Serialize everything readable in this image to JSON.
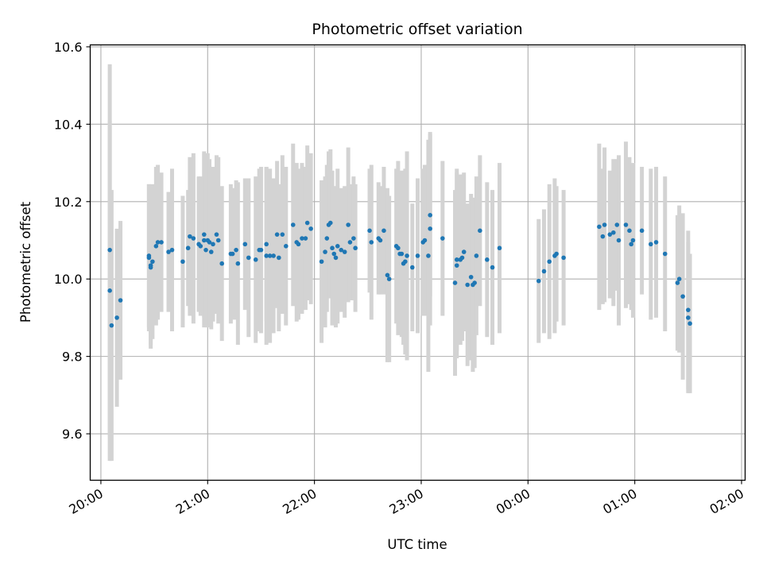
{
  "chart_data": {
    "type": "scatter",
    "title": "Photometric offset variation",
    "xlabel": "UTC time",
    "ylabel": "Photometric offset",
    "x_unit": "UTC time (HH:MM)",
    "xlim": [
      "19:54",
      "02:02"
    ],
    "ylim": [
      9.48,
      10.605
    ],
    "y_ticks": [
      9.6,
      9.8,
      10.0,
      10.2,
      10.4,
      10.6
    ],
    "x_ticks": [
      {
        "time": "20:00",
        "label": "20:00"
      },
      {
        "time": "21:00",
        "label": "21:00"
      },
      {
        "time": "22:00",
        "label": "22:00"
      },
      {
        "time": "23:00",
        "label": "23:00"
      },
      {
        "time": "00:00",
        "label": "00:00"
      },
      {
        "time": "01:00",
        "label": "01:00"
      },
      {
        "time": "02:00",
        "label": "02:00"
      }
    ],
    "grid": true,
    "colors": {
      "points": "#1f77b4",
      "errorbars": "#d3d3d3",
      "grid": "#b0b0b0"
    },
    "points": [
      {
        "t": "20:05",
        "y": 10.075,
        "err": 0.48
      },
      {
        "t": "20:05",
        "y": 9.97,
        "err": 0.44
      },
      {
        "t": "20:06",
        "y": 9.88,
        "err": 0.35
      },
      {
        "t": "20:09",
        "y": 9.9,
        "err": 0.23
      },
      {
        "t": "20:11",
        "y": 9.945,
        "err": 0.205
      },
      {
        "t": "20:27",
        "y": 10.06,
        "err": 0.185
      },
      {
        "t": "20:27",
        "y": 10.055,
        "err": 0.19
      },
      {
        "t": "20:28",
        "y": 10.035,
        "err": 0.205
      },
      {
        "t": "20:28",
        "y": 10.03,
        "err": 0.21
      },
      {
        "t": "20:29",
        "y": 10.045,
        "err": 0.2
      },
      {
        "t": "20:31",
        "y": 10.085,
        "err": 0.205
      },
      {
        "t": "20:32",
        "y": 10.095,
        "err": 0.2
      },
      {
        "t": "20:34",
        "y": 10.095,
        "err": 0.18
      },
      {
        "t": "20:38",
        "y": 10.07,
        "err": 0.155
      },
      {
        "t": "20:40",
        "y": 10.075,
        "err": 0.21
      },
      {
        "t": "20:46",
        "y": 10.045,
        "err": 0.17
      },
      {
        "t": "20:49",
        "y": 10.08,
        "err": 0.15
      },
      {
        "t": "20:50",
        "y": 10.11,
        "err": 0.205
      },
      {
        "t": "20:52",
        "y": 10.105,
        "err": 0.22
      },
      {
        "t": "20:55",
        "y": 10.09,
        "err": 0.175
      },
      {
        "t": "20:56",
        "y": 10.085,
        "err": 0.18
      },
      {
        "t": "20:58",
        "y": 10.1,
        "err": 0.225
      },
      {
        "t": "20:58",
        "y": 10.115,
        "err": 0.215
      },
      {
        "t": "20:59",
        "y": 10.075,
        "err": 0.195
      },
      {
        "t": "21:00",
        "y": 10.1,
        "err": 0.225
      },
      {
        "t": "21:01",
        "y": 10.095,
        "err": 0.215
      },
      {
        "t": "21:02",
        "y": 10.07,
        "err": 0.2
      },
      {
        "t": "21:03",
        "y": 10.09,
        "err": 0.2
      },
      {
        "t": "21:05",
        "y": 10.115,
        "err": 0.205
      },
      {
        "t": "21:06",
        "y": 10.1,
        "err": 0.215
      },
      {
        "t": "21:08",
        "y": 10.04,
        "err": 0.2
      },
      {
        "t": "21:13",
        "y": 10.065,
        "err": 0.18
      },
      {
        "t": "21:14",
        "y": 10.065,
        "err": 0.17
      },
      {
        "t": "21:16",
        "y": 10.075,
        "err": 0.18
      },
      {
        "t": "21:17",
        "y": 10.04,
        "err": 0.21
      },
      {
        "t": "21:21",
        "y": 10.09,
        "err": 0.17
      },
      {
        "t": "21:23",
        "y": 10.055,
        "err": 0.205
      },
      {
        "t": "21:27",
        "y": 10.05,
        "err": 0.215
      },
      {
        "t": "21:29",
        "y": 10.075,
        "err": 0.21
      },
      {
        "t": "21:30",
        "y": 10.075,
        "err": 0.215
      },
      {
        "t": "21:33",
        "y": 10.09,
        "err": 0.2
      },
      {
        "t": "21:33",
        "y": 10.06,
        "err": 0.23
      },
      {
        "t": "21:35",
        "y": 10.06,
        "err": 0.225
      },
      {
        "t": "21:37",
        "y": 10.06,
        "err": 0.2
      },
      {
        "t": "21:39",
        "y": 10.115,
        "err": 0.19
      },
      {
        "t": "21:40",
        "y": 10.055,
        "err": 0.19
      },
      {
        "t": "21:42",
        "y": 10.115,
        "err": 0.205
      },
      {
        "t": "21:44",
        "y": 10.085,
        "err": 0.205
      },
      {
        "t": "21:48",
        "y": 10.14,
        "err": 0.21
      },
      {
        "t": "21:50",
        "y": 10.095,
        "err": 0.205
      },
      {
        "t": "21:51",
        "y": 10.09,
        "err": 0.195
      },
      {
        "t": "21:53",
        "y": 10.105,
        "err": 0.195
      },
      {
        "t": "21:55",
        "y": 10.105,
        "err": 0.185
      },
      {
        "t": "21:56",
        "y": 10.145,
        "err": 0.2
      },
      {
        "t": "21:58",
        "y": 10.13,
        "err": 0.195
      },
      {
        "t": "22:04",
        "y": 10.045,
        "err": 0.21
      },
      {
        "t": "22:06",
        "y": 10.07,
        "err": 0.195
      },
      {
        "t": "22:07",
        "y": 10.105,
        "err": 0.19
      },
      {
        "t": "22:08",
        "y": 10.14,
        "err": 0.19
      },
      {
        "t": "22:09",
        "y": 10.145,
        "err": 0.19
      },
      {
        "t": "22:10",
        "y": 10.08,
        "err": 0.2
      },
      {
        "t": "22:11",
        "y": 10.065,
        "err": 0.175
      },
      {
        "t": "22:12",
        "y": 10.055,
        "err": 0.18
      },
      {
        "t": "22:13",
        "y": 10.085,
        "err": 0.2
      },
      {
        "t": "22:15",
        "y": 10.075,
        "err": 0.16
      },
      {
        "t": "22:17",
        "y": 10.07,
        "err": 0.17
      },
      {
        "t": "22:19",
        "y": 10.14,
        "err": 0.2
      },
      {
        "t": "22:20",
        "y": 10.095,
        "err": 0.15
      },
      {
        "t": "22:22",
        "y": 10.105,
        "err": 0.16
      },
      {
        "t": "22:23",
        "y": 10.08,
        "err": 0.165
      },
      {
        "t": "22:31",
        "y": 10.125,
        "err": 0.16
      },
      {
        "t": "22:32",
        "y": 10.095,
        "err": 0.2
      },
      {
        "t": "22:36",
        "y": 10.105,
        "err": 0.145
      },
      {
        "t": "22:37",
        "y": 10.1,
        "err": 0.14
      },
      {
        "t": "22:39",
        "y": 10.125,
        "err": 0.165
      },
      {
        "t": "22:41",
        "y": 10.01,
        "err": 0.225
      },
      {
        "t": "22:42",
        "y": 10.0,
        "err": 0.215
      },
      {
        "t": "22:46",
        "y": 10.085,
        "err": 0.2
      },
      {
        "t": "22:47",
        "y": 10.08,
        "err": 0.225
      },
      {
        "t": "22:48",
        "y": 10.065,
        "err": 0.19
      },
      {
        "t": "22:49",
        "y": 10.065,
        "err": 0.215
      },
      {
        "t": "22:50",
        "y": 10.04,
        "err": 0.21
      },
      {
        "t": "22:51",
        "y": 10.045,
        "err": 0.24
      },
      {
        "t": "22:52",
        "y": 10.06,
        "err": 0.27
      },
      {
        "t": "22:55",
        "y": 10.03,
        "err": 0.165
      },
      {
        "t": "22:58",
        "y": 10.06,
        "err": 0.2
      },
      {
        "t": "23:01",
        "y": 10.095,
        "err": 0.19
      },
      {
        "t": "23:02",
        "y": 10.1,
        "err": 0.195
      },
      {
        "t": "23:04",
        "y": 10.06,
        "err": 0.3
      },
      {
        "t": "23:05",
        "y": 10.13,
        "err": 0.25
      },
      {
        "t": "23:05",
        "y": 10.165,
        "err": 0.21
      },
      {
        "t": "23:12",
        "y": 10.105,
        "err": 0.2
      },
      {
        "t": "23:19",
        "y": 9.99,
        "err": 0.24
      },
      {
        "t": "23:20",
        "y": 10.035,
        "err": 0.24
      },
      {
        "t": "23:20",
        "y": 10.05,
        "err": 0.235
      },
      {
        "t": "23:22",
        "y": 10.05,
        "err": 0.22
      },
      {
        "t": "23:23",
        "y": 10.055,
        "err": 0.215
      },
      {
        "t": "23:24",
        "y": 10.07,
        "err": 0.205
      },
      {
        "t": "23:26",
        "y": 9.985,
        "err": 0.21
      },
      {
        "t": "23:28",
        "y": 10.005,
        "err": 0.215
      },
      {
        "t": "23:29",
        "y": 9.985,
        "err": 0.225
      },
      {
        "t": "23:30",
        "y": 9.99,
        "err": 0.22
      },
      {
        "t": "23:31",
        "y": 10.06,
        "err": 0.205
      },
      {
        "t": "23:33",
        "y": 10.125,
        "err": 0.195
      },
      {
        "t": "23:37",
        "y": 10.05,
        "err": 0.2
      },
      {
        "t": "23:40",
        "y": 10.03,
        "err": 0.2
      },
      {
        "t": "23:44",
        "y": 10.08,
        "err": 0.22
      },
      {
        "t": "00:06",
        "y": 9.995,
        "err": 0.16
      },
      {
        "t": "00:09",
        "y": 10.02,
        "err": 0.16
      },
      {
        "t": "00:12",
        "y": 10.045,
        "err": 0.2
      },
      {
        "t": "00:15",
        "y": 10.06,
        "err": 0.2
      },
      {
        "t": "00:16",
        "y": 10.065,
        "err": 0.175
      },
      {
        "t": "00:20",
        "y": 10.055,
        "err": 0.175
      },
      {
        "t": "00:40",
        "y": 10.135,
        "err": 0.215
      },
      {
        "t": "00:42",
        "y": 10.11,
        "err": 0.175
      },
      {
        "t": "00:43",
        "y": 10.14,
        "err": 0.2
      },
      {
        "t": "00:46",
        "y": 10.115,
        "err": 0.165
      },
      {
        "t": "00:48",
        "y": 10.12,
        "err": 0.19
      },
      {
        "t": "00:50",
        "y": 10.14,
        "err": 0.17
      },
      {
        "t": "00:51",
        "y": 10.1,
        "err": 0.22
      },
      {
        "t": "00:55",
        "y": 10.14,
        "err": 0.215
      },
      {
        "t": "00:57",
        "y": 10.125,
        "err": 0.19
      },
      {
        "t": "00:58",
        "y": 10.09,
        "err": 0.17
      },
      {
        "t": "00:59",
        "y": 10.1,
        "err": 0.2
      },
      {
        "t": "01:04",
        "y": 10.125,
        "err": 0.165
      },
      {
        "t": "01:09",
        "y": 10.09,
        "err": 0.195
      },
      {
        "t": "01:12",
        "y": 10.095,
        "err": 0.195
      },
      {
        "t": "01:17",
        "y": 10.065,
        "err": 0.2
      },
      {
        "t": "01:24",
        "y": 9.99,
        "err": 0.175
      },
      {
        "t": "01:25",
        "y": 10.0,
        "err": 0.19
      },
      {
        "t": "01:27",
        "y": 9.955,
        "err": 0.215
      },
      {
        "t": "01:30",
        "y": 9.9,
        "err": 0.195
      },
      {
        "t": "01:30",
        "y": 9.92,
        "err": 0.205
      },
      {
        "t": "01:31",
        "y": 9.885,
        "err": 0.18
      }
    ]
  }
}
